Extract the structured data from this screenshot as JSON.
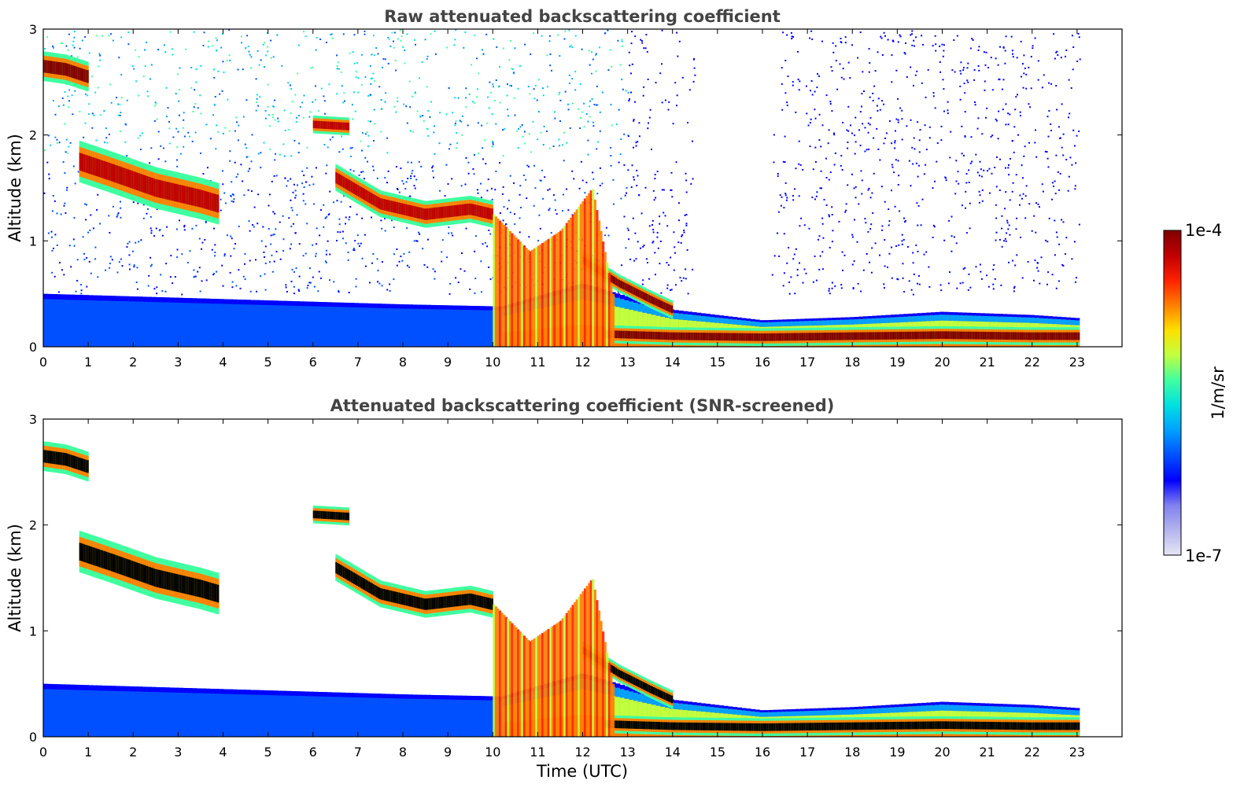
{
  "colors": {
    "colormap": [
      "#e6e6f5",
      "#b4b4ee",
      "#8080f0",
      "#0000ff",
      "#0050ff",
      "#00a0ff",
      "#00e0e0",
      "#40ffa0",
      "#c0ff40",
      "#ffe000",
      "#ff8000",
      "#ff2000",
      "#c00000",
      "#800000"
    ],
    "mask": "#000000",
    "background": "#ffffff"
  },
  "chart_data": [
    {
      "type": "heatmap",
      "title": "Raw attenuated backscattering coefficient",
      "xlabel": "",
      "ylabel": "Altitude (km)",
      "xlim": [
        0,
        24
      ],
      "ylim": [
        0,
        3
      ],
      "x_ticks": [
        "0",
        "1",
        "2",
        "3",
        "4",
        "5",
        "6",
        "7",
        "8",
        "9",
        "10",
        "11",
        "12",
        "13",
        "14",
        "15",
        "16",
        "17",
        "18",
        "19",
        "20",
        "21",
        "22",
        "23"
      ],
      "y_ticks": [
        "0",
        "1",
        "2",
        "3"
      ],
      "data_end_hour": 23.05,
      "cloud_layers": [
        {
          "t": [
            0.0,
            0.5,
            1.0
          ],
          "alt": [
            2.65,
            2.62,
            2.55
          ],
          "thickness": 0.2,
          "level": 13
        },
        {
          "t": [
            0.8,
            1.5,
            2.5,
            3.5,
            3.9
          ],
          "alt": [
            1.75,
            1.65,
            1.5,
            1.4,
            1.35
          ],
          "thickness": 0.28,
          "level": 12
        },
        {
          "t": [
            6.0,
            6.8
          ],
          "alt": [
            2.1,
            2.08
          ],
          "thickness": 0.12,
          "level": 12
        },
        {
          "t": [
            6.5,
            7.5,
            8.5,
            9.5,
            10.0
          ],
          "alt": [
            1.6,
            1.35,
            1.25,
            1.3,
            1.25
          ],
          "thickness": 0.18,
          "level": 12
        },
        {
          "t": [
            12.0,
            12.8,
            13.5,
            14.0
          ],
          "alt": [
            0.82,
            0.6,
            0.45,
            0.35
          ],
          "thickness": 0.12,
          "level": 13
        },
        {
          "t": [
            12.5,
            14,
            16,
            18,
            20,
            22,
            23.05
          ],
          "alt": [
            0.12,
            0.1,
            0.09,
            0.1,
            0.11,
            0.1,
            0.1
          ],
          "thickness": 0.12,
          "level": 13
        }
      ],
      "boundary_layer": {
        "t": [
          0,
          4,
          8,
          10.2,
          12,
          14,
          16,
          18,
          20,
          22,
          23.05
        ],
        "top_km": [
          0.5,
          0.45,
          0.4,
          0.38,
          0.6,
          0.35,
          0.25,
          0.28,
          0.33,
          0.3,
          0.27
        ]
      }
    },
    {
      "type": "heatmap",
      "title": "Attenuated backscattering coefficient (SNR-screened)",
      "xlabel": "Time (UTC)",
      "ylabel": "Altitude (km)",
      "xlim": [
        0,
        24
      ],
      "ylim": [
        0,
        3
      ],
      "x_ticks": [
        "0",
        "1",
        "2",
        "3",
        "4",
        "5",
        "6",
        "7",
        "8",
        "9",
        "10",
        "11",
        "12",
        "13",
        "14",
        "15",
        "16",
        "17",
        "18",
        "19",
        "20",
        "21",
        "22",
        "23"
      ],
      "y_ticks": [
        "0",
        "1",
        "2",
        "3"
      ],
      "data_end_hour": 23.05,
      "screened": true
    }
  ],
  "colorbar": {
    "label": "1/m/sr",
    "max_label": "1e-4",
    "min_label": "1e-7"
  }
}
